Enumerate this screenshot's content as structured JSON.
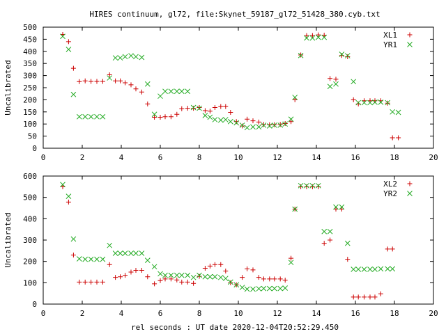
{
  "title": "HIRES continuum, gl72, file:Skynet_59187_gl72_51428_380.cyb.txt",
  "xlabel": "rel seconds : UT date 2020-12-04T20:52:29.450",
  "colors": {
    "red_series": "#cc0000",
    "green_series": "#22aa22",
    "axis": "#000000"
  },
  "chart_data": [
    {
      "type": "scatter",
      "ylabel": "Uncalibrated",
      "xlim": [
        0,
        20
      ],
      "ylim": [
        0,
        500
      ],
      "x_ticks": [
        "0",
        "2",
        "4",
        "6",
        "8",
        "10",
        "12",
        "14",
        "16",
        "18",
        "20"
      ],
      "x_tick_values": [
        0,
        2,
        4,
        6,
        8,
        10,
        12,
        14,
        16,
        18,
        20
      ],
      "y_ticks": [
        "0",
        "50",
        "100",
        "150",
        "200",
        "250",
        "300",
        "350",
        "400",
        "450",
        "500"
      ],
      "y_tick_values": [
        0,
        50,
        100,
        150,
        200,
        250,
        300,
        350,
        400,
        450,
        500
      ],
      "grid": false,
      "legend_position": "top-right",
      "series": [
        {
          "name": "XL1",
          "color": "#cc0000",
          "marker": "plus",
          "points": [
            [
              1.0,
              470
            ],
            [
              1.3,
              440
            ],
            [
              1.55,
              330
            ],
            [
              1.85,
              275
            ],
            [
              2.15,
              278
            ],
            [
              2.45,
              276
            ],
            [
              2.75,
              276
            ],
            [
              3.05,
              276
            ],
            [
              3.4,
              303
            ],
            [
              3.7,
              278
            ],
            [
              3.95,
              278
            ],
            [
              4.2,
              270
            ],
            [
              4.5,
              262
            ],
            [
              4.75,
              245
            ],
            [
              5.05,
              232
            ],
            [
              5.35,
              183
            ],
            [
              5.7,
              128
            ],
            [
              6.0,
              128
            ],
            [
              6.25,
              130
            ],
            [
              6.55,
              130
            ],
            [
              6.85,
              140
            ],
            [
              7.1,
              163
            ],
            [
              7.4,
              165
            ],
            [
              7.7,
              165
            ],
            [
              8.0,
              168
            ],
            [
              8.3,
              155
            ],
            [
              8.55,
              153
            ],
            [
              8.8,
              168
            ],
            [
              9.1,
              172
            ],
            [
              9.35,
              172
            ],
            [
              9.6,
              148
            ],
            [
              9.9,
              110
            ],
            [
              10.2,
              92
            ],
            [
              10.45,
              120
            ],
            [
              10.75,
              113
            ],
            [
              11.05,
              108
            ],
            [
              11.3,
              98
            ],
            [
              11.6,
              97
            ],
            [
              11.85,
              97
            ],
            [
              12.15,
              98
            ],
            [
              12.4,
              102
            ],
            [
              12.7,
              110
            ],
            [
              12.9,
              200
            ],
            [
              13.2,
              385
            ],
            [
              13.5,
              465
            ],
            [
              13.8,
              465
            ],
            [
              14.1,
              468
            ],
            [
              14.4,
              467
            ],
            [
              14.7,
              288
            ],
            [
              15.0,
              285
            ],
            [
              15.3,
              383
            ],
            [
              15.6,
              378
            ],
            [
              15.9,
              200
            ],
            [
              16.15,
              183
            ],
            [
              16.45,
              196
            ],
            [
              16.75,
              196
            ],
            [
              17.0,
              196
            ],
            [
              17.3,
              196
            ],
            [
              17.65,
              186
            ],
            [
              17.9,
              43
            ],
            [
              18.2,
              43
            ]
          ]
        },
        {
          "name": "YR1",
          "color": "#22aa22",
          "marker": "cross",
          "points": [
            [
              1.0,
              462
            ],
            [
              1.3,
              408
            ],
            [
              1.55,
              222
            ],
            [
              1.85,
              130
            ],
            [
              2.15,
              130
            ],
            [
              2.45,
              130
            ],
            [
              2.75,
              130
            ],
            [
              3.05,
              130
            ],
            [
              3.4,
              290
            ],
            [
              3.7,
              373
            ],
            [
              3.95,
              373
            ],
            [
              4.2,
              378
            ],
            [
              4.5,
              382
            ],
            [
              4.75,
              378
            ],
            [
              5.05,
              375
            ],
            [
              5.35,
              265
            ],
            [
              5.7,
              140
            ],
            [
              6.0,
              215
            ],
            [
              6.25,
              235
            ],
            [
              6.55,
              235
            ],
            [
              6.85,
              235
            ],
            [
              7.1,
              235
            ],
            [
              7.4,
              235
            ],
            [
              7.7,
              168
            ],
            [
              8.0,
              165
            ],
            [
              8.3,
              135
            ],
            [
              8.55,
              128
            ],
            [
              8.8,
              118
            ],
            [
              9.1,
              116
            ],
            [
              9.35,
              118
            ],
            [
              9.6,
              110
            ],
            [
              9.9,
              105
            ],
            [
              10.2,
              95
            ],
            [
              10.45,
              85
            ],
            [
              10.75,
              88
            ],
            [
              11.05,
              88
            ],
            [
              11.3,
              95
            ],
            [
              11.6,
              92
            ],
            [
              11.85,
              95
            ],
            [
              12.15,
              95
            ],
            [
              12.4,
              100
            ],
            [
              12.7,
              120
            ],
            [
              12.9,
              210
            ],
            [
              13.2,
              383
            ],
            [
              13.5,
              455
            ],
            [
              13.8,
              455
            ],
            [
              14.1,
              458
            ],
            [
              14.4,
              458
            ],
            [
              14.7,
              255
            ],
            [
              15.0,
              265
            ],
            [
              15.3,
              388
            ],
            [
              15.6,
              382
            ],
            [
              15.9,
              275
            ],
            [
              16.15,
              188
            ],
            [
              16.45,
              188
            ],
            [
              16.75,
              188
            ],
            [
              17.0,
              190
            ],
            [
              17.3,
              190
            ],
            [
              17.65,
              188
            ],
            [
              17.9,
              150
            ],
            [
              18.2,
              148
            ]
          ]
        }
      ]
    },
    {
      "type": "scatter",
      "ylabel": "Uncalibrated",
      "xlim": [
        0,
        20
      ],
      "ylim": [
        0,
        600
      ],
      "x_ticks": [
        "0",
        "2",
        "4",
        "6",
        "8",
        "10",
        "12",
        "14",
        "16",
        "18",
        "20"
      ],
      "x_tick_values": [
        0,
        2,
        4,
        6,
        8,
        10,
        12,
        14,
        16,
        18,
        20
      ],
      "y_ticks": [
        "0",
        "100",
        "200",
        "300",
        "400",
        "500",
        "600"
      ],
      "y_tick_values": [
        0,
        100,
        200,
        300,
        400,
        500,
        600
      ],
      "grid": false,
      "legend_position": "top-right",
      "series": [
        {
          "name": "XL2",
          "color": "#cc0000",
          "marker": "plus",
          "points": [
            [
              1.0,
              550
            ],
            [
              1.3,
              478
            ],
            [
              1.55,
              230
            ],
            [
              1.85,
              103
            ],
            [
              2.15,
              103
            ],
            [
              2.45,
              103
            ],
            [
              2.75,
              103
            ],
            [
              3.05,
              103
            ],
            [
              3.4,
              185
            ],
            [
              3.7,
              125
            ],
            [
              3.95,
              128
            ],
            [
              4.2,
              135
            ],
            [
              4.5,
              150
            ],
            [
              4.75,
              158
            ],
            [
              5.05,
              158
            ],
            [
              5.35,
              128
            ],
            [
              5.7,
              95
            ],
            [
              6.0,
              110
            ],
            [
              6.25,
              118
            ],
            [
              6.55,
              118
            ],
            [
              6.85,
              113
            ],
            [
              7.1,
              103
            ],
            [
              7.4,
              103
            ],
            [
              7.7,
              97
            ],
            [
              8.0,
              130
            ],
            [
              8.3,
              168
            ],
            [
              8.55,
              178
            ],
            [
              8.8,
              185
            ],
            [
              9.1,
              185
            ],
            [
              9.35,
              155
            ],
            [
              9.6,
              100
            ],
            [
              9.9,
              90
            ],
            [
              10.2,
              125
            ],
            [
              10.45,
              165
            ],
            [
              10.75,
              160
            ],
            [
              11.05,
              125
            ],
            [
              11.3,
              118
            ],
            [
              11.6,
              118
            ],
            [
              11.85,
              118
            ],
            [
              12.15,
              118
            ],
            [
              12.4,
              112
            ],
            [
              12.7,
              215
            ],
            [
              12.9,
              445
            ],
            [
              13.2,
              550
            ],
            [
              13.5,
              550
            ],
            [
              13.8,
              550
            ],
            [
              14.1,
              550
            ],
            [
              14.4,
              285
            ],
            [
              14.7,
              300
            ],
            [
              15.0,
              445
            ],
            [
              15.3,
              445
            ],
            [
              15.6,
              210
            ],
            [
              15.9,
              33
            ],
            [
              16.15,
              33
            ],
            [
              16.45,
              33
            ],
            [
              16.75,
              33
            ],
            [
              17.0,
              33
            ],
            [
              17.3,
              48
            ],
            [
              17.65,
              258
            ],
            [
              17.9,
              258
            ]
          ]
        },
        {
          "name": "YR2",
          "color": "#22aa22",
          "marker": "cross",
          "points": [
            [
              1.0,
              560
            ],
            [
              1.3,
              505
            ],
            [
              1.55,
              305
            ],
            [
              1.85,
              212
            ],
            [
              2.15,
              210
            ],
            [
              2.45,
              210
            ],
            [
              2.75,
              210
            ],
            [
              3.05,
              210
            ],
            [
              3.4,
              275
            ],
            [
              3.7,
              238
            ],
            [
              3.95,
              238
            ],
            [
              4.2,
              238
            ],
            [
              4.5,
              238
            ],
            [
              4.75,
              238
            ],
            [
              5.05,
              238
            ],
            [
              5.35,
              205
            ],
            [
              5.7,
              175
            ],
            [
              6.0,
              142
            ],
            [
              6.25,
              135
            ],
            [
              6.55,
              135
            ],
            [
              6.85,
              135
            ],
            [
              7.1,
              135
            ],
            [
              7.4,
              135
            ],
            [
              7.7,
              125
            ],
            [
              8.0,
              135
            ],
            [
              8.3,
              128
            ],
            [
              8.55,
              128
            ],
            [
              8.8,
              128
            ],
            [
              9.1,
              125
            ],
            [
              9.35,
              120
            ],
            [
              9.6,
              103
            ],
            [
              9.9,
              90
            ],
            [
              10.2,
              78
            ],
            [
              10.45,
              70
            ],
            [
              10.75,
              70
            ],
            [
              11.05,
              72
            ],
            [
              11.3,
              73
            ],
            [
              11.6,
              73
            ],
            [
              11.85,
              73
            ],
            [
              12.15,
              73
            ],
            [
              12.4,
              75
            ],
            [
              12.7,
              195
            ],
            [
              12.9,
              445
            ],
            [
              13.2,
              555
            ],
            [
              13.5,
              555
            ],
            [
              13.8,
              555
            ],
            [
              14.1,
              555
            ],
            [
              14.4,
              340
            ],
            [
              14.7,
              340
            ],
            [
              15.0,
              455
            ],
            [
              15.3,
              455
            ],
            [
              15.6,
              285
            ],
            [
              15.9,
              163
            ],
            [
              16.15,
              163
            ],
            [
              16.45,
              163
            ],
            [
              16.75,
              163
            ],
            [
              17.0,
              163
            ],
            [
              17.3,
              165
            ],
            [
              17.65,
              165
            ],
            [
              17.9,
              165
            ]
          ]
        }
      ]
    }
  ]
}
